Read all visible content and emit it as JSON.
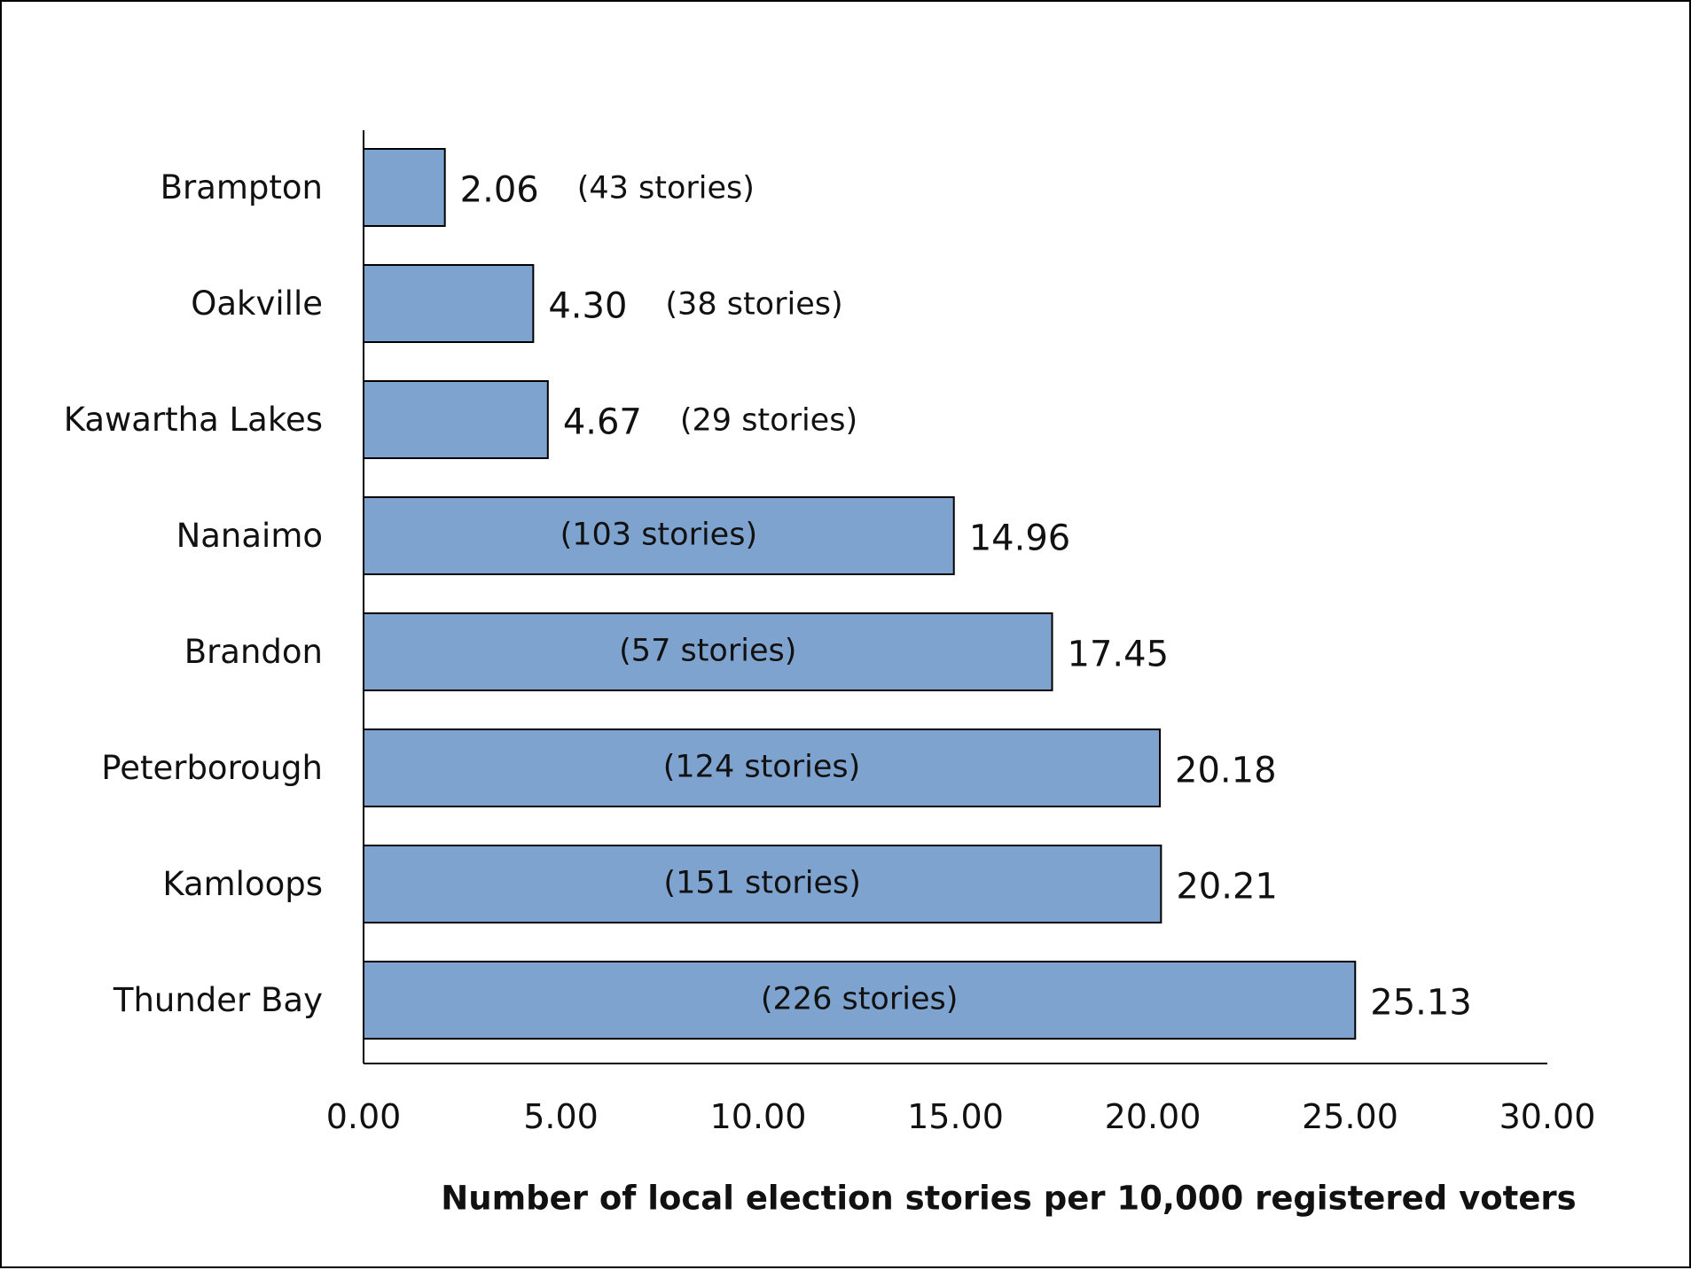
{
  "chart_data": {
    "type": "bar",
    "orientation": "horizontal",
    "categories": [
      "Brampton",
      "Oakville",
      "Kawartha Lakes",
      "Nanaimo",
      "Brandon",
      "Peterborough",
      "Kamloops",
      "Thunder Bay"
    ],
    "values": [
      2.06,
      4.3,
      4.67,
      14.96,
      17.45,
      20.18,
      20.21,
      25.13
    ],
    "value_labels": [
      "2.06",
      "4.30",
      "4.67",
      "14.96",
      "17.45",
      "20.18",
      "20.21",
      "25.13"
    ],
    "annotations": [
      "(43 stories)",
      "(38 stories)",
      "(29 stories)",
      "(103 stories)",
      "(57 stories)",
      "(124 stories)",
      "(151 stories)",
      "(226 stories)"
    ],
    "annotation_inside_bar": [
      false,
      false,
      false,
      true,
      true,
      true,
      true,
      true
    ],
    "xlabel": "Number of local election stories per 10,000  registered voters",
    "ylabel": "",
    "xlim": [
      0,
      30
    ],
    "xticks": [
      "0.00",
      "5.00",
      "10.00",
      "15.00",
      "20.00",
      "25.00",
      "30.00"
    ],
    "bar_color": "#7EA3CF",
    "bar_edge_color": "#000000",
    "grid": false,
    "legend": "none"
  }
}
